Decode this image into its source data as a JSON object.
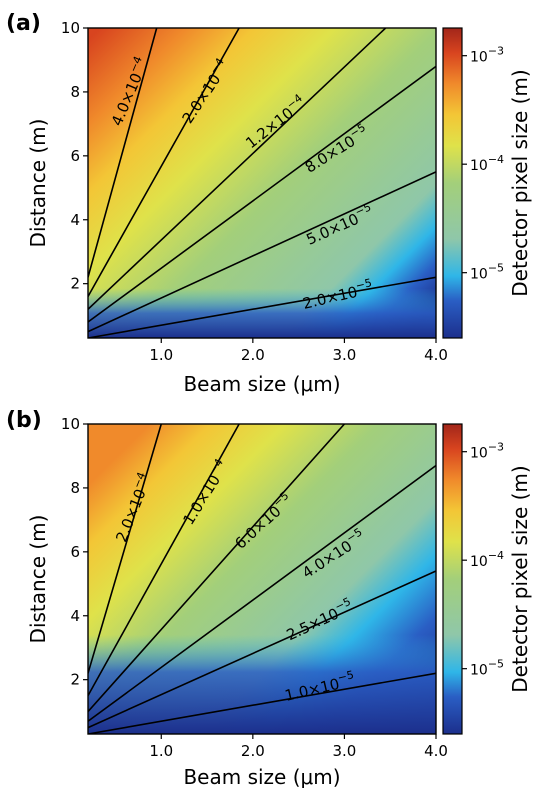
{
  "chart_data": [
    {
      "type": "heatmap",
      "panel_label": "(a)",
      "xlabel": "Beam size (μm)",
      "ylabel": "Distance (m)",
      "colorbar_label": "Detector pixel size (m)",
      "xlim": [
        0.2,
        4.0
      ],
      "ylim": [
        0.3,
        10
      ],
      "x_ticks": [
        1.0,
        2.0,
        3.0,
        4.0
      ],
      "x_tick_labels": [
        "1.0",
        "2.0",
        "3.0",
        "4.0"
      ],
      "y_ticks": [
        2,
        4,
        6,
        8,
        10
      ],
      "y_tick_labels": [
        "2",
        "4",
        "6",
        "8",
        "10"
      ],
      "colorbar_scale": "log",
      "colorbar_range": [
        2.5e-06,
        0.0018
      ],
      "colorbar_ticks": [
        1e-05,
        0.0001,
        0.001
      ],
      "colorbar_tick_labels": [
        {
          "base": "10",
          "exp": "−5"
        },
        {
          "base": "10",
          "exp": "−4"
        },
        {
          "base": "10",
          "exp": "−3"
        }
      ],
      "colormap": "jet-like (blue → cyan → green → yellow → orange → red)",
      "contours": [
        {
          "mantissa": "2.0×10",
          "exp": "−5",
          "level": 2e-05,
          "endpoints": [
            {
              "x": 0.2,
              "y": 0.3
            },
            {
              "x": 4.0,
              "y": 2.2
            }
          ]
        },
        {
          "mantissa": "5.0×10",
          "exp": "−5",
          "level": 5e-05,
          "endpoints": [
            {
              "x": 0.2,
              "y": 0.5
            },
            {
              "x": 4.0,
              "y": 5.5
            }
          ]
        },
        {
          "mantissa": "8.0×10",
          "exp": "−5",
          "level": 8e-05,
          "endpoints": [
            {
              "x": 0.2,
              "y": 0.8
            },
            {
              "x": 4.0,
              "y": 8.8
            }
          ]
        },
        {
          "mantissa": "1.2×10",
          "exp": "−4",
          "level": 0.00012,
          "endpoints": [
            {
              "x": 0.2,
              "y": 1.2
            },
            {
              "x": 3.45,
              "y": 10.0
            }
          ]
        },
        {
          "mantissa": "2.0×10",
          "exp": "−4",
          "level": 0.0002,
          "endpoints": [
            {
              "x": 0.2,
              "y": 1.6
            },
            {
              "x": 1.85,
              "y": 10.0
            }
          ]
        },
        {
          "mantissa": "4.0×10",
          "exp": "−4",
          "level": 0.0004,
          "endpoints": [
            {
              "x": 0.2,
              "y": 2.2
            },
            {
              "x": 0.95,
              "y": 10.0
            }
          ]
        }
      ]
    },
    {
      "type": "heatmap",
      "panel_label": "(b)",
      "xlabel": "Beam size (μm)",
      "ylabel": "Distance (m)",
      "colorbar_label": "Detector pixel size (m)",
      "xlim": [
        0.2,
        4.0
      ],
      "ylim": [
        0.3,
        10
      ],
      "x_ticks": [
        1.0,
        2.0,
        3.0,
        4.0
      ],
      "x_tick_labels": [
        "1.0",
        "2.0",
        "3.0",
        "4.0"
      ],
      "y_ticks": [
        2,
        4,
        6,
        8,
        10
      ],
      "y_tick_labels": [
        "2",
        "4",
        "6",
        "8",
        "10"
      ],
      "colorbar_scale": "log",
      "colorbar_range": [
        2.5e-06,
        0.0018
      ],
      "colorbar_ticks": [
        1e-05,
        0.0001,
        0.001
      ],
      "colorbar_tick_labels": [
        {
          "base": "10",
          "exp": "−5"
        },
        {
          "base": "10",
          "exp": "−4"
        },
        {
          "base": "10",
          "exp": "−3"
        }
      ],
      "colormap": "jet-like (blue → cyan → green → yellow → orange → red)",
      "contours": [
        {
          "mantissa": "1.0×10",
          "exp": "−5",
          "level": 1e-05,
          "endpoints": [
            {
              "x": 0.2,
              "y": 0.3
            },
            {
              "x": 4.0,
              "y": 2.2
            }
          ]
        },
        {
          "mantissa": "2.5×10",
          "exp": "−5",
          "level": 2.5e-05,
          "endpoints": [
            {
              "x": 0.2,
              "y": 0.5
            },
            {
              "x": 4.0,
              "y": 5.4
            }
          ]
        },
        {
          "mantissa": "4.0×10",
          "exp": "−5",
          "level": 4e-05,
          "endpoints": [
            {
              "x": 0.2,
              "y": 0.7
            },
            {
              "x": 4.0,
              "y": 8.7
            }
          ]
        },
        {
          "mantissa": "6.0×10",
          "exp": "−5",
          "level": 6e-05,
          "endpoints": [
            {
              "x": 0.2,
              "y": 1.0
            },
            {
              "x": 3.0,
              "y": 10.0
            }
          ]
        },
        {
          "mantissa": "1.0×10",
          "exp": "−4",
          "level": 0.0001,
          "endpoints": [
            {
              "x": 0.2,
              "y": 1.5
            },
            {
              "x": 1.85,
              "y": 10.0
            }
          ]
        },
        {
          "mantissa": "2.0×10",
          "exp": "−4",
          "level": 0.0002,
          "endpoints": [
            {
              "x": 0.2,
              "y": 2.2
            },
            {
              "x": 1.0,
              "y": 10.0
            }
          ]
        }
      ]
    }
  ],
  "colors": {
    "colormap_stops": [
      "#1c2f8c",
      "#2a5ec4",
      "#2fb6e8",
      "#8fc7a9",
      "#a3cf7a",
      "#dfe24a",
      "#f3c636",
      "#f08a2b",
      "#d8441f",
      "#a2261a"
    ],
    "contour_line": "#000000",
    "frame": "#000000"
  }
}
